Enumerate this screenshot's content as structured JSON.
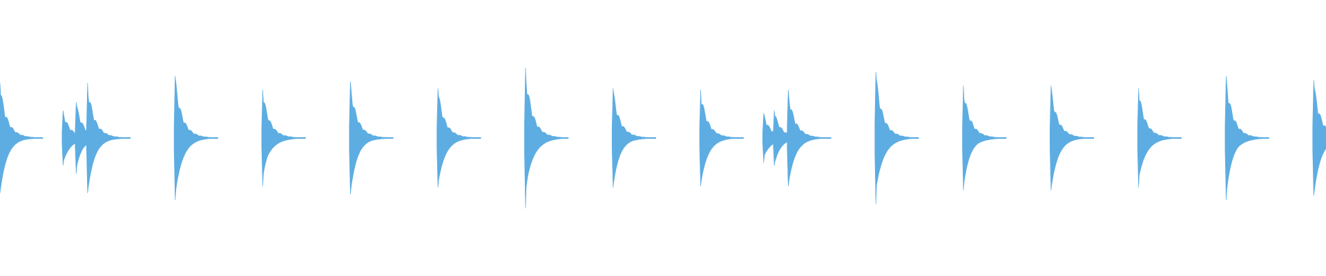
{
  "chart_data": {
    "type": "waveform",
    "color": "#5dade2",
    "x": [
      0,
      0.72,
      0.87,
      1,
      2,
      3,
      4,
      5,
      6,
      7,
      8,
      8.72,
      8.84,
      9,
      10,
      11,
      12,
      13,
      14,
      15
    ],
    "values": [
      0.4,
      0.2,
      0.26,
      0.4,
      0.45,
      0.35,
      0.41,
      0.36,
      0.51,
      0.36,
      0.35,
      0.18,
      0.2,
      0.35,
      0.48,
      0.38,
      0.38,
      0.36,
      0.45,
      0.42
    ],
    "xlim": [
      0,
      15.14
    ],
    "ylim": [
      -1,
      1
    ]
  }
}
